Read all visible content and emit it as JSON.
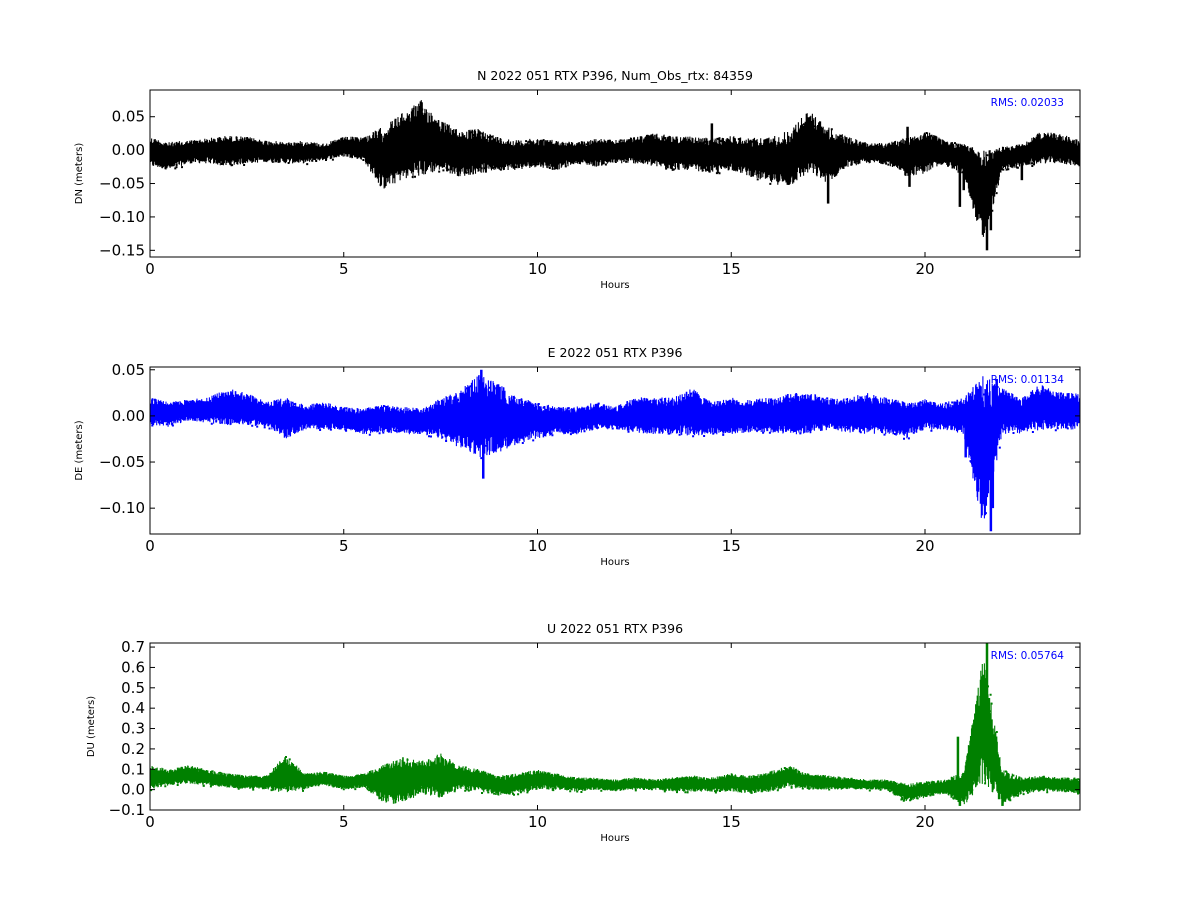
{
  "chart_data": [
    {
      "type": "scatter",
      "title": "N 2022 051 RTX  P396, Num_Obs_rtx: 84359",
      "xlabel": "Hours",
      "ylabel": "DN (meters)",
      "xlim": [
        0,
        24
      ],
      "ylim": [
        -0.16,
        0.09
      ],
      "xticks": [
        0,
        5,
        10,
        15,
        20
      ],
      "xtick_labels": [
        "0",
        "5",
        "10",
        "15",
        "20"
      ],
      "yticks": [
        0.05,
        0.0,
        -0.05,
        -0.1,
        -0.15
      ],
      "ytick_labels": [
        "0.05",
        "0.00",
        "−0.05",
        "−0.10",
        "−0.15"
      ],
      "rms_label": "RMS:  0.02033",
      "color": "#000000",
      "grid": false,
      "series": [
        {
          "envelope": {
            "x": [
              0,
              0.5,
              1,
              1.5,
              2,
              2.5,
              3,
              3.5,
              4,
              4.5,
              5,
              5.5,
              6,
              6.5,
              7,
              7.5,
              8,
              8.5,
              9,
              9.5,
              10,
              10.5,
              11,
              11.5,
              12,
              12.5,
              13,
              13.5,
              14,
              14.5,
              15,
              15.5,
              16,
              16.5,
              17,
              17.5,
              18,
              18.5,
              19,
              19.5,
              20,
              20.5,
              21,
              21.5,
              22,
              22.5,
              23,
              23.5,
              24
            ],
            "upper": [
              0.02,
              0.012,
              0.015,
              0.018,
              0.022,
              0.02,
              0.015,
              0.012,
              0.014,
              0.01,
              0.02,
              0.02,
              0.035,
              0.055,
              0.075,
              0.045,
              0.03,
              0.032,
              0.02,
              0.015,
              0.018,
              0.015,
              0.012,
              0.018,
              0.015,
              0.02,
              0.025,
              0.022,
              0.02,
              0.018,
              0.022,
              0.018,
              0.02,
              0.03,
              0.06,
              0.035,
              0.02,
              0.012,
              0.01,
              0.02,
              0.03,
              0.015,
              0.01,
              0.0,
              0.005,
              0.01,
              0.028,
              0.025,
              0.015
            ],
            "lower": [
              -0.025,
              -0.03,
              -0.02,
              -0.02,
              -0.025,
              -0.02,
              -0.018,
              -0.02,
              -0.02,
              -0.015,
              -0.01,
              -0.015,
              -0.06,
              -0.045,
              -0.04,
              -0.03,
              -0.04,
              -0.035,
              -0.03,
              -0.03,
              -0.025,
              -0.03,
              -0.02,
              -0.025,
              -0.02,
              -0.02,
              -0.025,
              -0.03,
              -0.03,
              -0.035,
              -0.03,
              -0.04,
              -0.05,
              -0.055,
              -0.035,
              -0.05,
              -0.025,
              -0.02,
              -0.02,
              -0.04,
              -0.035,
              -0.02,
              -0.04,
              -0.14,
              -0.03,
              -0.025,
              -0.02,
              -0.02,
              -0.025
            ]
          },
          "spikes": [
            {
              "x": 14.5,
              "y": 0.04
            },
            {
              "x": 14.6,
              "y": -0.02
            },
            {
              "x": 19.55,
              "y": 0.035
            },
            {
              "x": 19.6,
              "y": -0.055
            },
            {
              "x": 20.9,
              "y": -0.085
            },
            {
              "x": 21.0,
              "y": -0.06
            },
            {
              "x": 21.6,
              "y": -0.15
            },
            {
              "x": 21.7,
              "y": -0.12
            },
            {
              "x": 21.8,
              "y": -0.04
            },
            {
              "x": 22.5,
              "y": -0.045
            },
            {
              "x": 17.5,
              "y": -0.08
            }
          ]
        }
      ]
    },
    {
      "type": "scatter",
      "title": "E 2022 051 RTX  P396",
      "xlabel": "Hours",
      "ylabel": "DE (meters)",
      "xlim": [
        0,
        24
      ],
      "ylim": [
        -0.128,
        0.053
      ],
      "xticks": [
        0,
        5,
        10,
        15,
        20
      ],
      "xtick_labels": [
        "0",
        "5",
        "10",
        "15",
        "20"
      ],
      "yticks": [
        0.05,
        0.0,
        -0.05,
        -0.1
      ],
      "ytick_labels": [
        "0.05",
        "0.00",
        "−0.05",
        "−0.10"
      ],
      "rms_label": "RMS:  0.01134",
      "color": "#0000ff",
      "grid": false,
      "series": [
        {
          "envelope": {
            "x": [
              0,
              0.5,
              1,
              1.5,
              2,
              2.5,
              3,
              3.5,
              4,
              4.5,
              5,
              5.5,
              6,
              6.5,
              7,
              7.5,
              8,
              8.5,
              9,
              9.5,
              10,
              10.5,
              11,
              11.5,
              12,
              12.5,
              13,
              13.5,
              14,
              14.5,
              15,
              15.5,
              16,
              16.5,
              17,
              17.5,
              18,
              18.5,
              19,
              19.5,
              20,
              20.5,
              21,
              21.5,
              22,
              22.5,
              23,
              23.5,
              24
            ],
            "upper": [
              0.02,
              0.015,
              0.018,
              0.02,
              0.03,
              0.025,
              0.015,
              0.02,
              0.012,
              0.015,
              0.01,
              0.008,
              0.012,
              0.01,
              0.008,
              0.02,
              0.03,
              0.045,
              0.035,
              0.02,
              0.015,
              0.01,
              0.01,
              0.015,
              0.01,
              0.02,
              0.02,
              0.02,
              0.03,
              0.015,
              0.02,
              0.018,
              0.02,
              0.025,
              0.025,
              0.02,
              0.02,
              0.025,
              0.02,
              0.015,
              0.018,
              0.015,
              0.02,
              0.045,
              0.03,
              0.02,
              0.035,
              0.025,
              0.025
            ],
            "lower": [
              -0.01,
              -0.012,
              -0.005,
              -0.008,
              -0.01,
              -0.01,
              -0.012,
              -0.025,
              -0.015,
              -0.015,
              -0.015,
              -0.02,
              -0.018,
              -0.02,
              -0.02,
              -0.025,
              -0.035,
              -0.045,
              -0.04,
              -0.03,
              -0.025,
              -0.02,
              -0.02,
              -0.015,
              -0.015,
              -0.018,
              -0.02,
              -0.02,
              -0.022,
              -0.02,
              -0.02,
              -0.018,
              -0.018,
              -0.02,
              -0.02,
              -0.015,
              -0.018,
              -0.02,
              -0.02,
              -0.025,
              -0.015,
              -0.015,
              -0.02,
              -0.12,
              -0.02,
              -0.02,
              -0.015,
              -0.015,
              -0.015
            ]
          },
          "spikes": [
            {
              "x": 8.6,
              "y": -0.068
            },
            {
              "x": 8.55,
              "y": 0.05
            },
            {
              "x": 21.05,
              "y": -0.045
            },
            {
              "x": 21.7,
              "y": -0.125
            },
            {
              "x": 21.75,
              "y": -0.1
            },
            {
              "x": 21.85,
              "y": 0.04
            }
          ]
        }
      ]
    },
    {
      "type": "scatter",
      "title": "U 2022 051 RTX  P396",
      "xlabel": "Hours",
      "ylabel": "DU (meters)",
      "xlim": [
        0,
        24
      ],
      "ylim": [
        -0.1,
        0.72
      ],
      "xticks": [
        0,
        5,
        10,
        15,
        20
      ],
      "xtick_labels": [
        "0",
        "5",
        "10",
        "15",
        "20"
      ],
      "yticks": [
        0.7,
        0.6,
        0.5,
        0.4,
        0.3,
        0.2,
        0.1,
        0.0,
        -0.1
      ],
      "ytick_labels": [
        "0.7",
        "0.6",
        "0.5",
        "0.4",
        "0.3",
        "0.2",
        "0.1",
        "0.0",
        "−0.1"
      ],
      "rms_label": "RMS:  0.05764",
      "color": "#008000",
      "grid": false,
      "series": [
        {
          "envelope": {
            "x": [
              0,
              0.5,
              1,
              1.5,
              2,
              2.5,
              3,
              3.5,
              4,
              4.5,
              5,
              5.5,
              6,
              6.5,
              7,
              7.5,
              8,
              8.5,
              9,
              9.5,
              10,
              10.5,
              11,
              11.5,
              12,
              12.5,
              13,
              13.5,
              14,
              14.5,
              15,
              15.5,
              16,
              16.5,
              17,
              17.5,
              18,
              18.5,
              19,
              19.5,
              20,
              20.5,
              21,
              21.5,
              22,
              22.5,
              23,
              23.5,
              24
            ],
            "upper": [
              0.12,
              0.1,
              0.12,
              0.1,
              0.08,
              0.07,
              0.07,
              0.17,
              0.08,
              0.09,
              0.07,
              0.08,
              0.12,
              0.16,
              0.14,
              0.18,
              0.12,
              0.1,
              0.07,
              0.08,
              0.1,
              0.08,
              0.06,
              0.06,
              0.05,
              0.06,
              0.05,
              0.06,
              0.07,
              0.06,
              0.08,
              0.07,
              0.09,
              0.12,
              0.08,
              0.07,
              0.06,
              0.05,
              0.05,
              0.03,
              0.04,
              0.05,
              0.09,
              0.66,
              0.1,
              0.06,
              0.07,
              0.06,
              0.06
            ],
            "lower": [
              0.0,
              0.02,
              0.03,
              0.02,
              0.01,
              0.0,
              0.0,
              -0.02,
              0.0,
              0.02,
              0.0,
              0.01,
              -0.06,
              -0.08,
              -0.02,
              -0.04,
              0.0,
              -0.01,
              -0.03,
              -0.02,
              0.0,
              0.0,
              -0.01,
              0.0,
              -0.01,
              0.0,
              0.0,
              -0.01,
              -0.01,
              -0.01,
              -0.01,
              -0.02,
              -0.01,
              0.01,
              0.0,
              0.0,
              0.0,
              0.0,
              0.0,
              -0.06,
              -0.04,
              -0.02,
              -0.08,
              0.02,
              -0.07,
              -0.02,
              -0.01,
              -0.01,
              -0.02
            ]
          },
          "spikes": [
            {
              "x": 20.85,
              "y": 0.26
            },
            {
              "x": 20.9,
              "y": -0.08
            },
            {
              "x": 21.6,
              "y": 0.72
            },
            {
              "x": 21.65,
              "y": 0.45
            },
            {
              "x": 21.8,
              "y": 0.22
            },
            {
              "x": 22.0,
              "y": -0.08
            }
          ]
        }
      ]
    }
  ]
}
